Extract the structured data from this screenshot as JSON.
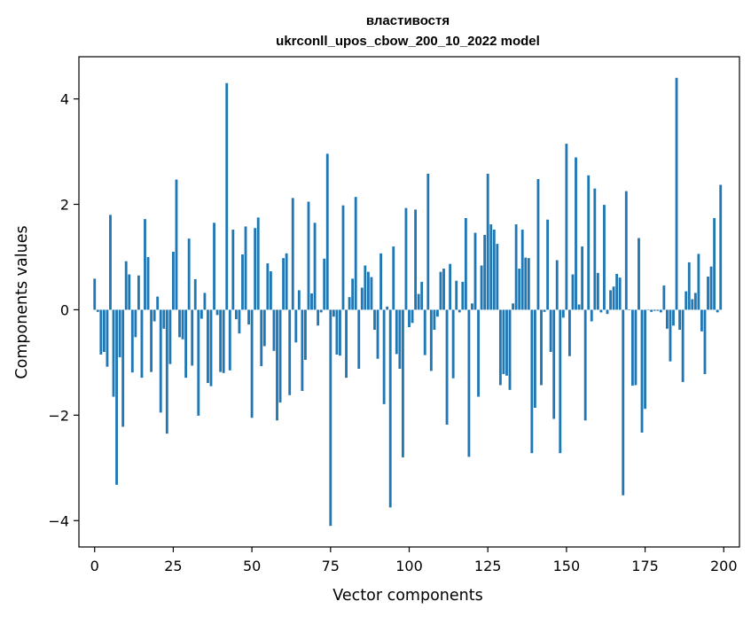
{
  "chart_data": {
    "type": "bar",
    "title": "властивостя",
    "subtitle": "ukrconll_upos_cbow_200_10_2022 model",
    "xlabel": "Vector components",
    "ylabel": "Components values",
    "xlim": [
      -5,
      205
    ],
    "ylim": [
      -4.5,
      4.8
    ],
    "xticks": [
      0,
      25,
      50,
      75,
      100,
      125,
      150,
      175,
      200
    ],
    "yticks": [
      -4,
      -2,
      0,
      2,
      4
    ],
    "ytick_labels": [
      "−4",
      "−2",
      "0",
      "2",
      "4"
    ],
    "bar_color": "#1f77b4",
    "values": [
      0.59,
      -0.04,
      -0.85,
      -0.8,
      -1.08,
      1.8,
      -1.65,
      -3.32,
      -0.9,
      -2.22,
      0.92,
      0.67,
      -1.19,
      -0.52,
      0.65,
      -1.29,
      1.72,
      1.0,
      -1.18,
      -0.22,
      0.25,
      -1.95,
      -0.36,
      -2.35,
      -1.03,
      1.1,
      2.47,
      -0.52,
      -0.56,
      -1.29,
      1.35,
      -1.06,
      0.58,
      -2.01,
      -0.17,
      0.32,
      -1.39,
      -1.45,
      1.65,
      -0.1,
      -1.18,
      -1.2,
      4.3,
      -1.15,
      1.52,
      -0.18,
      -0.45,
      1.05,
      1.58,
      -0.28,
      -2.05,
      1.55,
      1.75,
      -1.07,
      -0.69,
      0.88,
      0.73,
      -0.78,
      -2.1,
      -1.76,
      0.98,
      1.07,
      -1.62,
      2.12,
      -0.62,
      0.37,
      -1.54,
      -0.95,
      2.05,
      0.31,
      1.65,
      -0.3,
      -0.05,
      0.97,
      2.96,
      -4.1,
      -0.13,
      -0.85,
      -0.87,
      1.98,
      -1.29,
      0.24,
      0.59,
      2.14,
      -1.12,
      0.42,
      0.84,
      0.72,
      0.62,
      -0.38,
      -0.93,
      1.07,
      -1.79,
      0.06,
      -3.75,
      1.2,
      -0.84,
      -1.12,
      -2.8,
      1.93,
      -0.33,
      -0.25,
      1.9,
      0.3,
      0.53,
      -0.86,
      2.58,
      -1.16,
      -0.38,
      -0.13,
      0.72,
      0.78,
      -2.18,
      0.87,
      -1.3,
      0.55,
      -0.05,
      0.53,
      1.74,
      -2.79,
      0.12,
      1.46,
      -1.65,
      0.84,
      1.42,
      2.58,
      1.62,
      1.52,
      1.25,
      -1.43,
      -1.22,
      -1.25,
      -1.52,
      0.12,
      1.62,
      0.78,
      1.52,
      0.99,
      0.98,
      -2.72,
      -1.86,
      2.48,
      -1.43,
      -0.04,
      1.71,
      -0.8,
      -2.07,
      0.94,
      -2.72,
      -0.15,
      3.15,
      -0.88,
      0.67,
      2.89,
      0.1,
      1.2,
      -2.1,
      2.55,
      -0.22,
      2.3,
      0.7,
      -0.05,
      1.99,
      -0.08,
      0.37,
      0.44,
      0.68,
      0.61,
      -3.52,
      2.25,
      -0.01,
      -1.44,
      -1.43,
      1.36,
      -2.33,
      -1.88,
      -0.01,
      -0.04,
      -0.02,
      -0.02,
      -0.05,
      0.46,
      -0.36,
      -0.98,
      -0.3,
      4.4,
      -0.38,
      -1.37,
      0.35,
      0.9,
      0.2,
      0.32,
      1.06,
      -0.41,
      -1.22,
      0.63,
      0.82,
      1.74,
      -0.05,
      2.37
    ]
  }
}
